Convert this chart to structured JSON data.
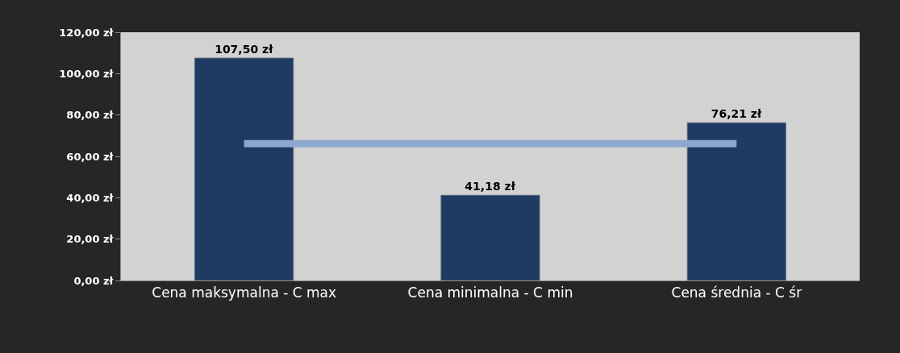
{
  "chart_data": {
    "type": "bar",
    "categories": [
      "Cena maksymalna - C max",
      "Cena minimalna - C min",
      "Cena średnia - C śr"
    ],
    "series": [
      {
        "color": "#1f3a63",
        "values": [
          107.5,
          41.18,
          76.21
        ],
        "value_labels": [
          "107,50 zł",
          "41,18 zł",
          "76,21 zł"
        ]
      },
      {
        "type": "line",
        "color": "#8ea7cf",
        "values": [
          66.1,
          66.1,
          66.1
        ],
        "marker": "none",
        "line_style": "solid"
      }
    ],
    "ylim": [
      0,
      120
    ],
    "yticks": [
      {
        "value": 0,
        "label": "0,00 zł"
      },
      {
        "value": 20,
        "label": "20,00 zł"
      },
      {
        "value": 40,
        "label": "40,00 zł"
      },
      {
        "value": 60,
        "label": "60,00 zł"
      },
      {
        "value": 80,
        "label": "80,00 zł"
      },
      {
        "value": 100,
        "label": "100,00 zł"
      },
      {
        "value": 120,
        "label": "120,00 zł"
      }
    ],
    "grid": false
  }
}
